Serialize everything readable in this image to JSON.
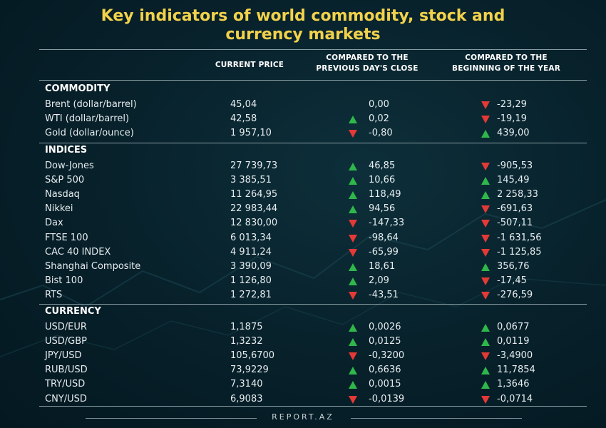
{
  "title_line1": "Key indicators of world commodity, stock and",
  "title_line2": "currency markets",
  "columns": {
    "price_label": "CURRENT PRICE",
    "prev_line1": "COMPARED TO THE",
    "prev_line2": "PREVIOUS DAY'S CLOSE",
    "year_line1": "COMPARED TO THE",
    "year_line2": "BEGINNING OF THE YEAR"
  },
  "colors": {
    "title": "#f2d24b",
    "up": "#2fb84a",
    "down": "#e53935"
  },
  "sections": [
    {
      "label": "COMMODITY",
      "rows": [
        {
          "name": "Brent (dollar/barrel)",
          "price": "45,04",
          "prev": "0,00",
          "prev_dir": "none",
          "year": "-23,29",
          "year_dir": "down"
        },
        {
          "name": "WTI (dollar/barrel)",
          "price": "42,58",
          "prev": "0,02",
          "prev_dir": "up",
          "year": "-19,19",
          "year_dir": "down"
        },
        {
          "name": "Gold (dollar/ounce)",
          "price": "1 957,10",
          "prev": "-0,80",
          "prev_dir": "down",
          "year": "439,00",
          "year_dir": "up"
        }
      ]
    },
    {
      "label": "INDICES",
      "rows": [
        {
          "name": "Dow-Jones",
          "price": "27 739,73",
          "prev": "46,85",
          "prev_dir": "up",
          "year": "-905,53",
          "year_dir": "down"
        },
        {
          "name": "S&P 500",
          "price": "3 385,51",
          "prev": "10,66",
          "prev_dir": "up",
          "year": "145,49",
          "year_dir": "up"
        },
        {
          "name": "Nasdaq",
          "price": "11 264,95",
          "prev": "118,49",
          "prev_dir": "up",
          "year": "2 258,33",
          "year_dir": "up"
        },
        {
          "name": "Nikkei",
          "price": "22 983,44",
          "prev": "94,56",
          "prev_dir": "up",
          "year": "-691,63",
          "year_dir": "down"
        },
        {
          "name": "Dax",
          "price": "12 830,00",
          "prev": "-147,33",
          "prev_dir": "down",
          "year": "-507,11",
          "year_dir": "down"
        },
        {
          "name": "FTSE 100",
          "price": "6 013,34",
          "prev": "-98,64",
          "prev_dir": "down",
          "year": "-1 631,56",
          "year_dir": "down"
        },
        {
          "name": "CAC 40 INDEX",
          "price": "4 911,24",
          "prev": "-65,99",
          "prev_dir": "down",
          "year": "-1 125,85",
          "year_dir": "down"
        },
        {
          "name": "Shanghai Composite",
          "price": "3 390,09",
          "prev": "18,61",
          "prev_dir": "up",
          "year": "356,76",
          "year_dir": "up"
        },
        {
          "name": "Bist 100",
          "price": "1 126,80",
          "prev": "2,09",
          "prev_dir": "up",
          "year": "-17,45",
          "year_dir": "down"
        },
        {
          "name": "RTS",
          "price": "1 272,81",
          "prev": "-43,51",
          "prev_dir": "down",
          "year": "-276,59",
          "year_dir": "down"
        }
      ]
    },
    {
      "label": "CURRENCY",
      "rows": [
        {
          "name": "USD/EUR",
          "price": "1,1875",
          "prev": "0,0026",
          "prev_dir": "up",
          "year": "0,0677",
          "year_dir": "up"
        },
        {
          "name": "USD/GBP",
          "price": "1,3232",
          "prev": "0,0125",
          "prev_dir": "up",
          "year": "0,0119",
          "year_dir": "up"
        },
        {
          "name": "JPY/USD",
          "price": "105,6700",
          "prev": "-0,3200",
          "prev_dir": "down",
          "year": "-3,4900",
          "year_dir": "down"
        },
        {
          "name": "RUB/USD",
          "price": "73,9229",
          "prev": "0,6636",
          "prev_dir": "up",
          "year": "11,7854",
          "year_dir": "up"
        },
        {
          "name": "TRY/USD",
          "price": "7,3140",
          "prev": "0,0015",
          "prev_dir": "up",
          "year": "1,3646",
          "year_dir": "up"
        },
        {
          "name": "CNY/USD",
          "price": "6,9083",
          "prev": "-0,0139",
          "prev_dir": "down",
          "year": "-0,0714",
          "year_dir": "down"
        }
      ]
    }
  ],
  "footer": "REPORT.AZ"
}
